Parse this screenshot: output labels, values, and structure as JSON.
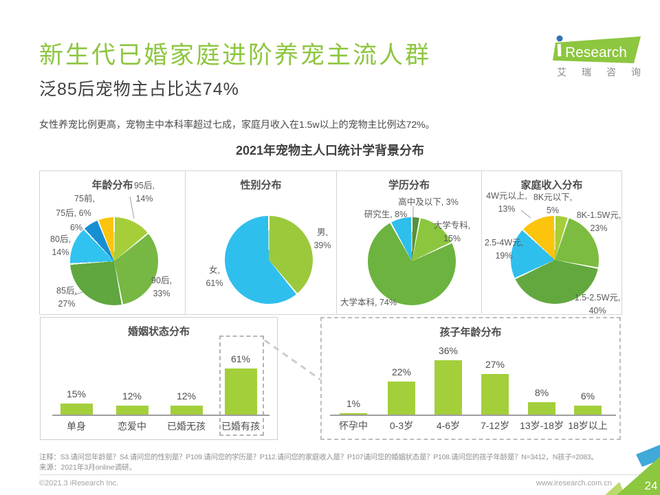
{
  "header": {
    "title": "新生代已婚家庭进阶养宠主流人群",
    "subtitle": "泛85后宠物主占比达74%",
    "description": "女性养宠比例更高，宠物主中本科率超过七成，家庭月收入在1.5w以上的宠物主比例达72%。",
    "logo": {
      "brand": "iResearch",
      "brand_cn": "艾瑞咨询",
      "brand_cn_spaced": [
        "艾",
        "瑞",
        "咨",
        "询"
      ]
    }
  },
  "chart_title": "2021年宠物主人口统计学背景分布",
  "colors": {
    "title_green": "#8dc63f",
    "bar_green": "#a3cf3b",
    "cyan": "#2fbfec",
    "blue": "#168fd2",
    "yellow": "#fdc40d"
  },
  "chart_data": [
    {
      "id": "age",
      "type": "pie",
      "title": "年龄分布",
      "slices": [
        {
          "label": "95后",
          "value": 14,
          "color": "#a6ce39"
        },
        {
          "label": "90后",
          "value": 33,
          "color": "#76b843"
        },
        {
          "label": "85后",
          "value": 27,
          "color": "#60a73f"
        },
        {
          "label": "80后",
          "value": 14,
          "color": "#31c3ef"
        },
        {
          "label": "75后",
          "value": 6,
          "color": "#168fd2"
        },
        {
          "label": "75前",
          "value": 6,
          "color": "#fdc40d"
        }
      ]
    },
    {
      "id": "gender",
      "type": "pie",
      "title": "性别分布",
      "slices": [
        {
          "label": "男",
          "value": 39,
          "color": "#9cc93c"
        },
        {
          "label": "女",
          "value": 61,
          "color": "#2fbfec"
        }
      ]
    },
    {
      "id": "education",
      "type": "pie",
      "title": "学历分布",
      "slices": [
        {
          "label": "高中及以下",
          "value": 3,
          "color": "#55923c"
        },
        {
          "label": "大学专科",
          "value": 15,
          "color": "#8cc63f"
        },
        {
          "label": "大学本科",
          "value": 74,
          "color": "#6cb33f"
        },
        {
          "label": "研究生",
          "value": 8,
          "color": "#2fbfec"
        }
      ]
    },
    {
      "id": "income",
      "type": "pie",
      "title": "家庭收入分布",
      "slices": [
        {
          "label": "8K元以下",
          "value": 5,
          "color": "#a6ce39"
        },
        {
          "label": "8K-1.5W元",
          "value": 23,
          "color": "#7cbc41"
        },
        {
          "label": "1.5-2.5W元",
          "value": 40,
          "color": "#63a83f"
        },
        {
          "label": "2.5-4W元",
          "value": 19,
          "color": "#2fbfec"
        },
        {
          "label": "4W元以上",
          "value": 13,
          "color": "#fdc40d"
        }
      ]
    },
    {
      "id": "marital",
      "type": "bar",
      "title": "婚姻状态分布",
      "categories": [
        "单身",
        "恋爱中",
        "已婚无孩",
        "已婚有孩"
      ],
      "values": [
        15,
        12,
        12,
        61
      ],
      "highlighted_category": "已婚有孩"
    },
    {
      "id": "children",
      "type": "bar",
      "title": "孩子年龄分布",
      "categories": [
        "怀孕中",
        "0-3岁",
        "4-6岁",
        "7-12岁",
        "13岁-18岁",
        "18岁以上"
      ],
      "values": [
        1,
        22,
        36,
        27,
        8,
        6
      ]
    }
  ],
  "footer": {
    "note": "注释：S3.请问您年龄是？S4.请问您的性别是？P109.请问您的学历是？P112.请问您的家庭收入是？P107请问您的婚姻状态是？P108.请问您的孩子年龄是？N=3412，N孩子=2083。",
    "source": "来源：2021年3月online调研。",
    "copyright": "©2021.3 iResearch Inc.",
    "website": "www.iresearch.com.cn",
    "page": "24"
  }
}
